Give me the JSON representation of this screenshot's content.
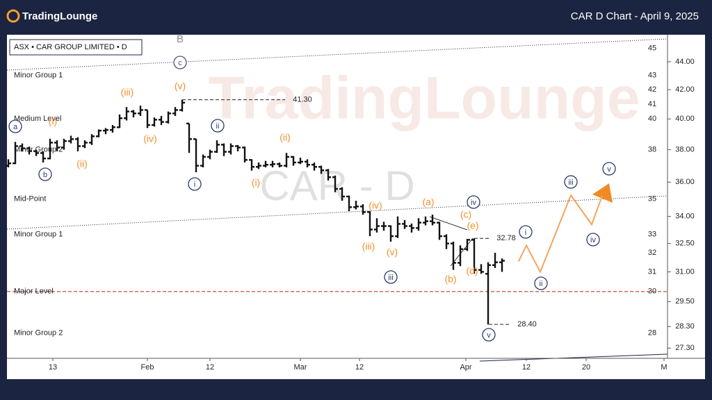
{
  "header": {
    "brand": "TradingLounge",
    "title": "CAR D Chart - April 9, 2025"
  },
  "chart_data": {
    "type": "ohlc",
    "title": "ASX • CAR GROUP LIMITED • D",
    "watermark": "TradingLounge",
    "symbol_watermark": "CAR - D",
    "color": "#111111",
    "log_scale": true,
    "ylim": [
      26.87,
      46.03
    ],
    "yticks": [
      {
        "value": 44,
        "label": "44.00"
      },
      {
        "value": 42,
        "label": "42.00"
      },
      {
        "value": 40,
        "label": "40.00"
      },
      {
        "value": 38,
        "label": "38.00"
      },
      {
        "value": 36,
        "label": "36.00"
      },
      {
        "value": 34,
        "label": "34.00"
      },
      {
        "value": 32.5,
        "label": "32.50"
      },
      {
        "value": 31,
        "label": "31.00"
      },
      {
        "value": 29.5,
        "label": "29.50"
      },
      {
        "value": 28.3,
        "label": "28.30"
      },
      {
        "value": 27.3,
        "label": "27.30"
      }
    ],
    "level_ticks": [
      45,
      43,
      42,
      41,
      40,
      38,
      35,
      33,
      32,
      31,
      30,
      28
    ],
    "levels": [
      {
        "name": "Minor Group 1",
        "value": 43
      },
      {
        "name": "Medium Level",
        "value": 40
      },
      {
        "name": "Minor Group 2",
        "value": 38
      },
      {
        "name": "Mid-Point",
        "value": 35
      },
      {
        "name": "Minor Group 1",
        "value": 33
      },
      {
        "name": "Major Level",
        "value": 30,
        "line_color": "#c0392b"
      },
      {
        "name": "Minor Group 2",
        "value": 28
      }
    ],
    "xlim": [
      -0.2,
      94.8
    ],
    "xticks": [
      {
        "value": 6.4,
        "label": "13"
      },
      {
        "value": 20,
        "label": "Feb"
      },
      {
        "value": 29,
        "label": "12"
      },
      {
        "value": 42,
        "label": "Mar"
      },
      {
        "value": 50.5,
        "label": "12"
      },
      {
        "value": 65.8,
        "label": "Apr"
      },
      {
        "value": 74.5,
        "label": "12"
      },
      {
        "value": 83.1,
        "label": "20"
      },
      {
        "value": 94.3,
        "label": "M"
      }
    ],
    "ohlc": [
      [
        37.0,
        37.4,
        36.9,
        37.15
      ],
      [
        37.15,
        38.5,
        37.1,
        38.23
      ],
      [
        38.23,
        38.4,
        37.9,
        38.09
      ],
      [
        38.09,
        38.2,
        37.7,
        37.91
      ],
      [
        37.91,
        38.0,
        37.6,
        37.79
      ],
      [
        37.79,
        37.9,
        37.2,
        37.45
      ],
      [
        37.45,
        38.7,
        37.4,
        38.45
      ],
      [
        38.45,
        38.6,
        37.9,
        38.14
      ],
      [
        38.14,
        38.7,
        38.0,
        38.55
      ],
      [
        38.55,
        38.9,
        38.4,
        38.68
      ],
      [
        38.68,
        38.8,
        37.9,
        38.23
      ],
      [
        38.23,
        38.6,
        38.1,
        38.45
      ],
      [
        38.45,
        39.0,
        38.3,
        38.86
      ],
      [
        38.86,
        39.3,
        38.8,
        39.23
      ],
      [
        39.23,
        39.4,
        39.0,
        39.27
      ],
      [
        39.27,
        39.6,
        39.1,
        39.45
      ],
      [
        39.45,
        40.3,
        39.4,
        40.05
      ],
      [
        40.05,
        40.8,
        39.9,
        40.5
      ],
      [
        40.5,
        40.6,
        40.1,
        40.37
      ],
      [
        40.37,
        40.9,
        40.2,
        40.6
      ],
      [
        40.6,
        40.6,
        39.4,
        39.6
      ],
      [
        39.6,
        40.1,
        39.5,
        39.95
      ],
      [
        39.95,
        40.2,
        39.6,
        39.8
      ],
      [
        39.8,
        40.5,
        39.7,
        40.37
      ],
      [
        40.37,
        40.8,
        40.2,
        40.6
      ],
      [
        40.6,
        41.3,
        40.5,
        41.1
      ],
      [
        39.7,
        39.7,
        37.8,
        38.68
      ],
      [
        38.68,
        38.7,
        36.6,
        37.0
      ],
      [
        37.0,
        37.7,
        36.9,
        37.55
      ],
      [
        37.55,
        38.0,
        37.4,
        37.87
      ],
      [
        37.87,
        38.6,
        37.8,
        38.32
      ],
      [
        38.32,
        38.4,
        37.6,
        37.87
      ],
      [
        37.87,
        38.4,
        37.7,
        38.23
      ],
      [
        38.23,
        38.3,
        37.9,
        38.14
      ],
      [
        38.14,
        38.2,
        37.2,
        37.36
      ],
      [
        37.36,
        37.4,
        36.7,
        36.93
      ],
      [
        36.93,
        37.2,
        36.8,
        37.0
      ],
      [
        37.0,
        37.3,
        36.9,
        37.06
      ],
      [
        37.06,
        37.3,
        36.9,
        37.1
      ],
      [
        37.1,
        37.2,
        36.9,
        37.0
      ],
      [
        37.0,
        37.8,
        36.9,
        37.55
      ],
      [
        37.55,
        37.6,
        37.0,
        37.2
      ],
      [
        37.2,
        37.5,
        37.1,
        37.25
      ],
      [
        37.25,
        37.4,
        36.9,
        37.06
      ],
      [
        37.06,
        37.2,
        36.7,
        36.93
      ],
      [
        36.93,
        37.0,
        36.5,
        36.72
      ],
      [
        36.72,
        36.8,
        36.1,
        36.3
      ],
      [
        36.3,
        36.4,
        35.4,
        35.6
      ],
      [
        35.6,
        35.7,
        34.9,
        35.15
      ],
      [
        35.15,
        35.2,
        34.3,
        34.53
      ],
      [
        34.53,
        34.9,
        34.4,
        34.57
      ],
      [
        34.57,
        34.7,
        34.1,
        34.25
      ],
      [
        34.25,
        34.3,
        32.9,
        33.27
      ],
      [
        33.27,
        33.9,
        33.1,
        33.46
      ],
      [
        33.46,
        33.7,
        33.2,
        33.46
      ],
      [
        33.46,
        33.5,
        32.6,
        32.9
      ],
      [
        32.9,
        34.0,
        32.8,
        33.58
      ],
      [
        33.58,
        33.8,
        33.3,
        33.46
      ],
      [
        33.46,
        33.6,
        33.1,
        33.35
      ],
      [
        33.35,
        33.9,
        33.2,
        33.65
      ],
      [
        33.65,
        34.0,
        33.5,
        33.73
      ],
      [
        33.73,
        34.1,
        33.5,
        33.65
      ],
      [
        33.65,
        33.7,
        32.7,
        32.9
      ],
      [
        32.9,
        33.0,
        32.2,
        32.5
      ],
      [
        32.5,
        32.6,
        31.1,
        31.47
      ],
      [
        31.47,
        32.4,
        31.3,
        32.2
      ],
      [
        32.2,
        32.75,
        32.1,
        32.7
      ],
      [
        32.7,
        32.78,
        30.9,
        31.1
      ],
      [
        31.1,
        31.4,
        30.9,
        31.0
      ],
      [
        30.9,
        31.5,
        28.4,
        31.35
      ],
      [
        31.35,
        32.0,
        31.2,
        31.5
      ],
      [
        31.5,
        31.7,
        31.0,
        31.58
      ]
    ],
    "price_labels": [
      {
        "value": 41.3,
        "label": "41.30"
      },
      {
        "value": 32.78,
        "label": "32.78"
      },
      {
        "value": 28.4,
        "label": "28.40"
      }
    ],
    "projection": {
      "color": "#f5a35c",
      "x": [
        73.4,
        74.5,
        76.5,
        80.9,
        83.9,
        85.4
      ],
      "values": [
        31.55,
        32.4,
        31.0,
        35.22,
        33.55,
        35.18
      ]
    },
    "wave_labels": [
      {
        "text": "(i)",
        "style": "orange"
      },
      {
        "text": "(ii)",
        "style": "orange"
      },
      {
        "text": "(iii)",
        "style": "orange"
      },
      {
        "text": "(iv)",
        "style": "orange"
      },
      {
        "text": "(v)",
        "style": "orange"
      },
      {
        "text": "(i)",
        "style": "orange"
      },
      {
        "text": "(ii)",
        "style": "orange"
      },
      {
        "text": "(iii)",
        "style": "orange"
      },
      {
        "text": "(iv)",
        "style": "orange"
      },
      {
        "text": "(v)",
        "style": "orange"
      },
      {
        "text": "(a)",
        "style": "orange"
      },
      {
        "text": "(b)",
        "style": "orange"
      },
      {
        "text": "(c)",
        "style": "orange"
      },
      {
        "text": "(d)",
        "style": "orange"
      },
      {
        "text": "(e)",
        "style": "orange"
      },
      {
        "text": "a",
        "style": "circled"
      },
      {
        "text": "b",
        "style": "circled"
      },
      {
        "text": "c",
        "style": "circled"
      },
      {
        "text": "i",
        "style": "circled"
      },
      {
        "text": "ii",
        "style": "circled"
      },
      {
        "text": "iii",
        "style": "circled"
      },
      {
        "text": "iv",
        "style": "circled"
      },
      {
        "text": "v",
        "style": "circled"
      },
      {
        "text": "i",
        "style": "circled"
      },
      {
        "text": "ii",
        "style": "circled"
      },
      {
        "text": "iii",
        "style": "circled"
      },
      {
        "text": "iv",
        "style": "circled"
      },
      {
        "text": "v",
        "style": "circled"
      },
      {
        "text": "B",
        "style": "gray"
      }
    ]
  }
}
